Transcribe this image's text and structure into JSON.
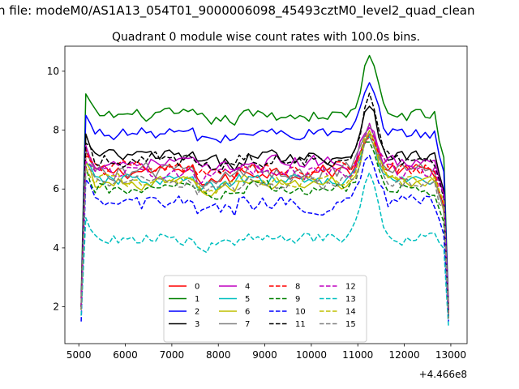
{
  "chart_data": {
    "type": "line",
    "suptitle": "n file: modeM0/AS1A13_054T01_9000006098_45493cztM0_level2_quad_clean",
    "title": "Quadrant 0 module wise count rates with 100.0s bins.",
    "xlabel": "",
    "ylabel": "",
    "x_offset_label": "+4.466e8",
    "xlim": [
      4700,
      13350
    ],
    "ylim": [
      0.75,
      10.85
    ],
    "x_ticks": [
      5000,
      6000,
      7000,
      8000,
      9000,
      10000,
      11000,
      12000,
      13000
    ],
    "y_ticks": [
      2,
      4,
      6,
      8,
      10
    ],
    "x_range": [
      5050,
      12950
    ],
    "x_step": 100,
    "grid": false,
    "legend": {
      "placement": "lower center",
      "columns": 4
    },
    "series": [
      {
        "name": "0",
        "color": "#ff0000",
        "dash": "solid",
        "start": 2.0,
        "level": 6.6,
        "peak": 7.9,
        "noise": 0.35,
        "dip": 0.35,
        "end": 1.8
      },
      {
        "name": "1",
        "color": "#008000",
        "dash": "solid",
        "start": 2.3,
        "level": 8.5,
        "peak": 10.4,
        "noise": 0.3,
        "dip": 0.2,
        "end": 2.0
      },
      {
        "name": "2",
        "color": "#0000ff",
        "dash": "solid",
        "start": 2.1,
        "level": 7.9,
        "peak": 9.4,
        "noise": 0.3,
        "dip": 0.25,
        "end": 1.9
      },
      {
        "name": "3",
        "color": "#000000",
        "dash": "solid",
        "start": 2.0,
        "level": 7.1,
        "peak": 9.0,
        "noise": 0.35,
        "dip": 0.3,
        "end": 1.8
      },
      {
        "name": "4",
        "color": "#bf00bf",
        "dash": "solid",
        "start": 2.0,
        "level": 6.9,
        "peak": 8.2,
        "noise": 0.35,
        "dip": 0.3,
        "end": 1.8
      },
      {
        "name": "5",
        "color": "#00bfbf",
        "dash": "solid",
        "start": 1.9,
        "level": 6.3,
        "peak": 7.7,
        "noise": 0.3,
        "dip": 0.3,
        "end": 1.7
      },
      {
        "name": "6",
        "color": "#bfbf00",
        "dash": "solid",
        "start": 1.9,
        "level": 6.2,
        "peak": 7.9,
        "noise": 0.3,
        "dip": 0.3,
        "end": 1.7
      },
      {
        "name": "7",
        "color": "#808080",
        "dash": "solid",
        "start": 2.0,
        "level": 6.6,
        "peak": 8.0,
        "noise": 0.4,
        "dip": 0.3,
        "end": 1.8
      },
      {
        "name": "8",
        "color": "#ff0000",
        "dash": "dashed",
        "start": 2.0,
        "level": 6.7,
        "peak": 8.0,
        "noise": 0.35,
        "dip": 0.3,
        "end": 1.8
      },
      {
        "name": "9",
        "color": "#008000",
        "dash": "dashed",
        "start": 1.9,
        "level": 6.0,
        "peak": 7.6,
        "noise": 0.35,
        "dip": 0.3,
        "end": 1.6
      },
      {
        "name": "10",
        "color": "#0000ff",
        "dash": "dashed",
        "start": 1.5,
        "level": 5.5,
        "peak": 7.1,
        "noise": 0.4,
        "dip": 0.3,
        "end": 1.5
      },
      {
        "name": "11",
        "color": "#000000",
        "dash": "dashed",
        "start": 2.0,
        "level": 7.0,
        "peak": 9.2,
        "noise": 0.35,
        "dip": 0.3,
        "end": 1.8
      },
      {
        "name": "12",
        "color": "#bf00bf",
        "dash": "dashed",
        "start": 2.0,
        "level": 6.6,
        "peak": 8.1,
        "noise": 0.35,
        "dip": 0.3,
        "end": 1.8
      },
      {
        "name": "13",
        "color": "#00bfbf",
        "dash": "dashed",
        "start": 1.7,
        "level": 4.3,
        "peak": 6.8,
        "noise": 0.3,
        "dip": 0.3,
        "end": 1.3
      },
      {
        "name": "14",
        "color": "#bfbf00",
        "dash": "dashed",
        "start": 1.9,
        "level": 6.3,
        "peak": 7.9,
        "noise": 0.3,
        "dip": 0.3,
        "end": 1.6
      },
      {
        "name": "15",
        "color": "#808080",
        "dash": "dashed",
        "start": 1.9,
        "level": 6.2,
        "peak": 7.9,
        "noise": 0.35,
        "dip": 0.3,
        "end": 1.6
      }
    ]
  }
}
